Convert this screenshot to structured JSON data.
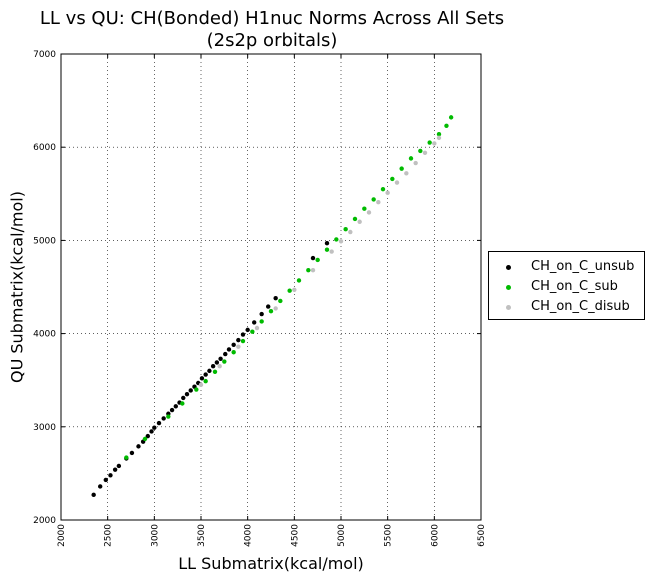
{
  "title_line1": "LL vs QU: CH(Bonded) H1nuc Norms Across All Sets",
  "title_line2": "(2s2p orbitals)",
  "chart_data": {
    "type": "scatter",
    "title": "LL vs QU: CH(Bonded) H1nuc Norms Across All Sets (2s2p orbitals)",
    "xlabel": "LL Submatrix(kcal/mol)",
    "ylabel": "QU Submatrix(kcal/mol)",
    "xlim": [
      2000,
      6500
    ],
    "ylim": [
      2000,
      7000
    ],
    "x_ticks": [
      "2000",
      "2500",
      "3000",
      "3500",
      "4000",
      "4500",
      "5000",
      "5500",
      "6000",
      "6500"
    ],
    "y_ticks": [
      "2000",
      "3000",
      "4000",
      "5000",
      "6000",
      "7000"
    ],
    "grid": true,
    "legend_position": "outside-right",
    "series": [
      {
        "name": "CH_on_C_unsub",
        "color": "#000000",
        "points": [
          [
            2350,
            2270
          ],
          [
            2420,
            2360
          ],
          [
            2480,
            2430
          ],
          [
            2530,
            2480
          ],
          [
            2580,
            2540
          ],
          [
            2620,
            2580
          ],
          [
            2700,
            2660
          ],
          [
            2760,
            2720
          ],
          [
            2830,
            2790
          ],
          [
            2880,
            2840
          ],
          [
            2930,
            2900
          ],
          [
            2970,
            2950
          ],
          [
            3000,
            2990
          ],
          [
            3050,
            3040
          ],
          [
            3100,
            3090
          ],
          [
            3150,
            3140
          ],
          [
            3190,
            3180
          ],
          [
            3230,
            3220
          ],
          [
            3270,
            3260
          ],
          [
            3310,
            3310
          ],
          [
            3350,
            3350
          ],
          [
            3390,
            3390
          ],
          [
            3430,
            3430
          ],
          [
            3470,
            3470
          ],
          [
            3510,
            3520
          ],
          [
            3550,
            3560
          ],
          [
            3590,
            3600
          ],
          [
            3630,
            3650
          ],
          [
            3670,
            3690
          ],
          [
            3710,
            3730
          ],
          [
            3760,
            3780
          ],
          [
            3800,
            3830
          ],
          [
            3850,
            3880
          ],
          [
            3900,
            3930
          ],
          [
            3950,
            3990
          ],
          [
            4000,
            4040
          ],
          [
            4070,
            4120
          ],
          [
            4150,
            4210
          ],
          [
            4220,
            4290
          ],
          [
            4300,
            4380
          ],
          [
            4700,
            4810
          ],
          [
            4850,
            4970
          ]
        ]
      },
      {
        "name": "CH_on_C_sub",
        "color": "#00bb00",
        "points": [
          [
            2700,
            2670
          ],
          [
            2900,
            2870
          ],
          [
            3150,
            3110
          ],
          [
            3300,
            3250
          ],
          [
            3450,
            3400
          ],
          [
            3550,
            3490
          ],
          [
            3650,
            3590
          ],
          [
            3750,
            3700
          ],
          [
            3850,
            3800
          ],
          [
            3950,
            3920
          ],
          [
            4050,
            4020
          ],
          [
            4150,
            4130
          ],
          [
            4250,
            4240
          ],
          [
            4350,
            4350
          ],
          [
            4450,
            4460
          ],
          [
            4550,
            4570
          ],
          [
            4650,
            4680
          ],
          [
            4750,
            4790
          ],
          [
            4850,
            4900
          ],
          [
            4950,
            5010
          ],
          [
            5050,
            5120
          ],
          [
            5150,
            5230
          ],
          [
            5250,
            5340
          ],
          [
            5350,
            5440
          ],
          [
            5450,
            5550
          ],
          [
            5550,
            5660
          ],
          [
            5650,
            5770
          ],
          [
            5750,
            5880
          ],
          [
            5850,
            5960
          ],
          [
            5950,
            6050
          ],
          [
            6050,
            6140
          ],
          [
            6130,
            6230
          ],
          [
            6180,
            6320
          ]
        ]
      },
      {
        "name": "CH_on_C_disub",
        "color": "#c0c0c0",
        "points": [
          [
            3500,
            3450
          ],
          [
            3700,
            3650
          ],
          [
            3900,
            3860
          ],
          [
            4100,
            4060
          ],
          [
            4300,
            4270
          ],
          [
            4500,
            4470
          ],
          [
            4700,
            4680
          ],
          [
            4900,
            4880
          ],
          [
            5000,
            4990
          ],
          [
            5100,
            5090
          ],
          [
            5200,
            5200
          ],
          [
            5300,
            5300
          ],
          [
            5400,
            5410
          ],
          [
            5500,
            5510
          ],
          [
            5600,
            5620
          ],
          [
            5700,
            5720
          ],
          [
            5800,
            5830
          ],
          [
            5900,
            5940
          ],
          [
            6000,
            6040
          ],
          [
            6050,
            6100
          ]
        ]
      }
    ]
  }
}
